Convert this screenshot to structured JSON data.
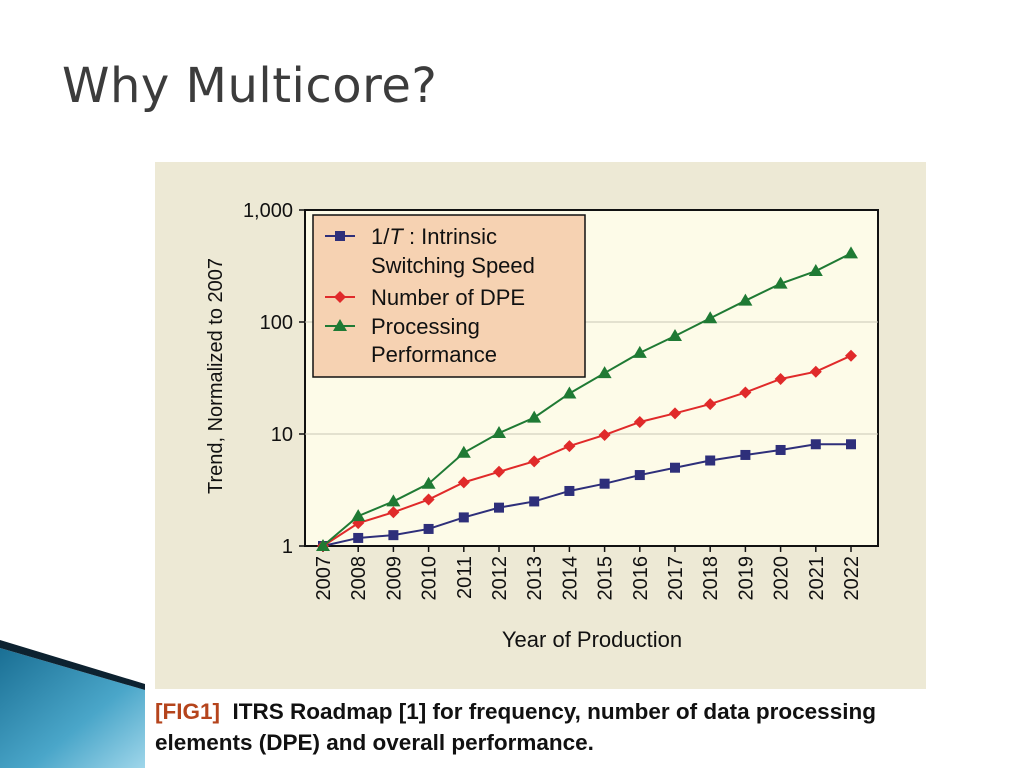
{
  "slide": {
    "title": "Why Multicore?"
  },
  "caption": {
    "tag": "[FIG1]",
    "text": "ITRS Roadmap [1] for frequency, number of data processing elements (DPE) and overall performance."
  },
  "chart_data": {
    "type": "line",
    "xlabel": "Year of Production",
    "ylabel": "Trend, Normalized to 2007",
    "y_scale": "log",
    "ylim": [
      1,
      1000
    ],
    "y_ticks": [
      1,
      10,
      100,
      1000
    ],
    "y_tick_labels": [
      "1",
      "10",
      "100",
      "1,000"
    ],
    "grid": "horizontal",
    "legend_position": "top-left",
    "legend_background": "#f6d2b2",
    "plot_background": "#fdfbe8",
    "x": [
      "2007",
      "2008",
      "2009",
      "2010",
      "2011",
      "2012",
      "2013",
      "2014",
      "2015",
      "2016",
      "2017",
      "2018",
      "2019",
      "2020",
      "2021",
      "2022"
    ],
    "series": [
      {
        "name_prefix": "1/",
        "name_italic": "T",
        "name_rest": " : Intrinsic Switching Speed",
        "name_line1": ": Intrinsic",
        "name_line2": "Switching Speed",
        "color": "#2e2f7a",
        "marker": "square",
        "values": [
          1.0,
          1.18,
          1.25,
          1.42,
          1.8,
          2.2,
          2.5,
          3.1,
          3.6,
          4.3,
          5.0,
          5.8,
          6.5,
          7.2,
          8.1,
          8.1
        ]
      },
      {
        "name": "Number of DPE",
        "color": "#e02a2a",
        "marker": "diamond",
        "values": [
          1.0,
          1.6,
          2.0,
          2.6,
          3.7,
          4.6,
          5.7,
          7.8,
          9.8,
          12.8,
          15.3,
          18.5,
          23.5,
          31,
          36,
          50
        ]
      },
      {
        "name_line1": "Processing",
        "name_line2": "Performance",
        "color": "#1f7a34",
        "marker": "triangle",
        "values": [
          1.0,
          1.85,
          2.5,
          3.6,
          6.8,
          10.2,
          14,
          23,
          35,
          53,
          75,
          108,
          155,
          220,
          285,
          410
        ]
      }
    ]
  }
}
